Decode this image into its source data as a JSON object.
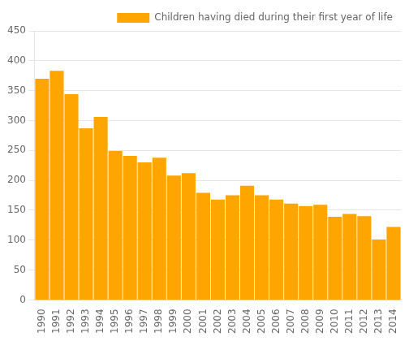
{
  "chart_data": {
    "type": "bar",
    "categories": [
      "1990",
      "1991",
      "1992",
      "1993",
      "1994",
      "1995",
      "1996",
      "1997",
      "1998",
      "1999",
      "2000",
      "2001",
      "2002",
      "2003",
      "2004",
      "2005",
      "2006",
      "2007",
      "2008",
      "2009",
      "2010",
      "2011",
      "2012",
      "2013",
      "2014"
    ],
    "series": [
      {
        "name": "Children having died during their first year of life",
        "color": "#FFA500",
        "values": [
          370,
          383,
          344,
          287,
          306,
          249,
          241,
          230,
          238,
          208,
          212,
          179,
          168,
          175,
          191,
          175,
          168,
          161,
          157,
          159,
          139,
          144,
          140,
          101,
          122
        ]
      }
    ],
    "ylim": [
      0,
      450
    ],
    "yticks": [
      0,
      50,
      100,
      150,
      200,
      250,
      300,
      350,
      400,
      450
    ],
    "grid": true,
    "legend": "upper right"
  }
}
